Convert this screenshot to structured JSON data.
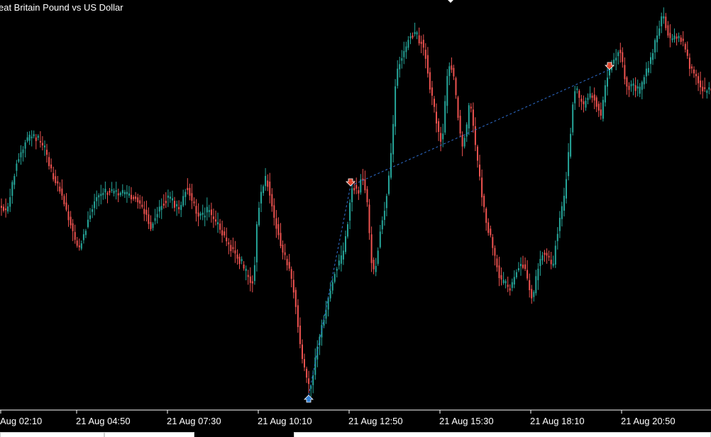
{
  "window": {
    "title": "eat Britain Pound vs US Dollar"
  },
  "colors": {
    "background": "#000000",
    "bull": "#26a69a",
    "bear": "#ef5350",
    "axis": "#ffffff",
    "buy_marker": "#2f7fd6",
    "sell_marker": "#e0442b",
    "trade_line": "#2f6fd0"
  },
  "chart_data": {
    "type": "candlestick",
    "symbol_title": "eat Britain Pound vs US Dollar",
    "x_tick_labels": [
      "Aug 02:10",
      "21 Aug 04:50",
      "21 Aug 07:30",
      "21 Aug 10:10",
      "21 Aug 12:50",
      "21 Aug 15:30",
      "21 Aug 18:10",
      "21 Aug 20:50"
    ],
    "price_trace": [
      [
        0,
        290
      ],
      [
        8,
        300
      ],
      [
        14,
        270
      ],
      [
        22,
        230
      ],
      [
        30,
        210
      ],
      [
        38,
        195
      ],
      [
        46,
        190
      ],
      [
        54,
        200
      ],
      [
        62,
        210
      ],
      [
        70,
        240
      ],
      [
        78,
        255
      ],
      [
        86,
        275
      ],
      [
        94,
        300
      ],
      [
        102,
        330
      ],
      [
        110,
        350
      ],
      [
        118,
        330
      ],
      [
        126,
        300
      ],
      [
        134,
        280
      ],
      [
        142,
        272
      ],
      [
        150,
        270
      ],
      [
        158,
        272
      ],
      [
        166,
        274
      ],
      [
        174,
        272
      ],
      [
        182,
        275
      ],
      [
        190,
        280
      ],
      [
        198,
        290
      ],
      [
        206,
        305
      ],
      [
        212,
        320
      ],
      [
        218,
        305
      ],
      [
        226,
        290
      ],
      [
        234,
        280
      ],
      [
        242,
        285
      ],
      [
        250,
        295
      ],
      [
        256,
        285
      ],
      [
        262,
        260
      ],
      [
        268,
        280
      ],
      [
        276,
        300
      ],
      [
        284,
        305
      ],
      [
        292,
        295
      ],
      [
        300,
        310
      ],
      [
        308,
        320
      ],
      [
        316,
        335
      ],
      [
        324,
        350
      ],
      [
        332,
        360
      ],
      [
        340,
        375
      ],
      [
        348,
        390
      ],
      [
        354,
        400
      ],
      [
        358,
        370
      ],
      [
        362,
        300
      ],
      [
        368,
        265
      ],
      [
        374,
        250
      ],
      [
        380,
        275
      ],
      [
        386,
        310
      ],
      [
        392,
        330
      ],
      [
        398,
        360
      ],
      [
        404,
        370
      ],
      [
        410,
        395
      ],
      [
        416,
        430
      ],
      [
        420,
        470
      ],
      [
        424,
        500
      ],
      [
        428,
        520
      ],
      [
        432,
        540
      ],
      [
        436,
        550
      ],
      [
        440,
        530
      ],
      [
        444,
        500
      ],
      [
        448,
        480
      ],
      [
        454,
        455
      ],
      [
        460,
        430
      ],
      [
        466,
        400
      ],
      [
        472,
        380
      ],
      [
        478,
        370
      ],
      [
        484,
        350
      ],
      [
        488,
        320
      ],
      [
        492,
        285
      ],
      [
        496,
        262
      ],
      [
        500,
        265
      ],
      [
        504,
        270
      ],
      [
        508,
        250
      ],
      [
        512,
        255
      ],
      [
        516,
        280
      ],
      [
        520,
        340
      ],
      [
        524,
        385
      ],
      [
        528,
        380
      ],
      [
        534,
        330
      ],
      [
        540,
        300
      ],
      [
        546,
        260
      ],
      [
        552,
        200
      ],
      [
        556,
        120
      ],
      [
        560,
        95
      ],
      [
        564,
        80
      ],
      [
        570,
        70
      ],
      [
        576,
        50
      ],
      [
        582,
        45
      ],
      [
        588,
        55
      ],
      [
        594,
        60
      ],
      [
        600,
        85
      ],
      [
        606,
        130
      ],
      [
        612,
        160
      ],
      [
        618,
        190
      ],
      [
        622,
        200
      ],
      [
        626,
        150
      ],
      [
        630,
        100
      ],
      [
        634,
        90
      ],
      [
        640,
        120
      ],
      [
        646,
        180
      ],
      [
        650,
        210
      ],
      [
        656,
        185
      ],
      [
        660,
        150
      ],
      [
        664,
        160
      ],
      [
        668,
        200
      ],
      [
        672,
        230
      ],
      [
        676,
        260
      ],
      [
        680,
        290
      ],
      [
        686,
        320
      ],
      [
        692,
        340
      ],
      [
        698,
        370
      ],
      [
        704,
        395
      ],
      [
        710,
        400
      ],
      [
        716,
        410
      ],
      [
        722,
        395
      ],
      [
        728,
        380
      ],
      [
        734,
        370
      ],
      [
        740,
        385
      ],
      [
        746,
        410
      ],
      [
        750,
        425
      ],
      [
        756,
        380
      ],
      [
        762,
        360
      ],
      [
        768,
        355
      ],
      [
        774,
        370
      ],
      [
        778,
        380
      ],
      [
        782,
        340
      ],
      [
        788,
        310
      ],
      [
        794,
        280
      ],
      [
        798,
        240
      ],
      [
        802,
        200
      ],
      [
        806,
        150
      ],
      [
        810,
        120
      ],
      [
        816,
        140
      ],
      [
        822,
        150
      ],
      [
        828,
        135
      ],
      [
        834,
        130
      ],
      [
        840,
        150
      ],
      [
        846,
        165
      ],
      [
        852,
        120
      ],
      [
        856,
        100
      ],
      [
        862,
        90
      ],
      [
        868,
        75
      ],
      [
        872,
        70
      ],
      [
        876,
        90
      ],
      [
        880,
        115
      ],
      [
        886,
        125
      ],
      [
        892,
        120
      ],
      [
        898,
        130
      ],
      [
        904,
        120
      ],
      [
        910,
        100
      ],
      [
        916,
        85
      ],
      [
        920,
        70
      ],
      [
        926,
        45
      ],
      [
        930,
        30
      ],
      [
        934,
        20
      ],
      [
        938,
        40
      ],
      [
        944,
        60
      ],
      [
        950,
        50
      ],
      [
        956,
        55
      ],
      [
        962,
        60
      ],
      [
        966,
        70
      ],
      [
        970,
        95
      ],
      [
        976,
        100
      ],
      [
        982,
        110
      ],
      [
        988,
        125
      ],
      [
        994,
        130
      ],
      [
        1002,
        125
      ]
    ],
    "trades": [
      {
        "type": "buy",
        "x": 435,
        "price_y": 562
      },
      {
        "type": "sell",
        "x": 494,
        "price_y": 257
      },
      {
        "type": "sell",
        "x": 859,
        "price_y": 93
      }
    ],
    "grid": false,
    "legend": "none"
  },
  "bottom_tabs": [
    {
      "left": 0,
      "width": 147
    },
    {
      "left": 147,
      "width": 127
    },
    {
      "left": 414,
      "width": 588
    }
  ]
}
